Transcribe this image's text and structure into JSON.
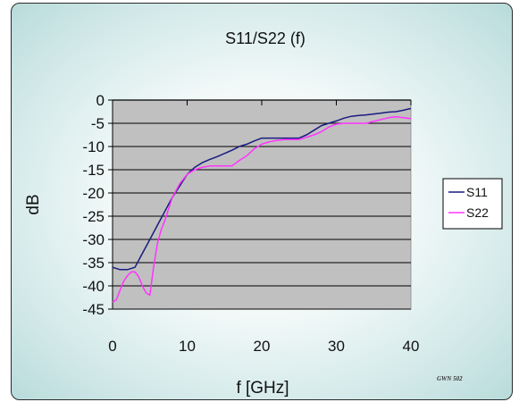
{
  "chart_data": {
    "type": "line",
    "title": "S11/S22 (f)",
    "xlabel": "f [GHz]",
    "ylabel": "dB",
    "xlim": [
      0,
      40
    ],
    "ylim": [
      -45,
      0
    ],
    "xticks": [
      0,
      10,
      20,
      30,
      40
    ],
    "yticks": [
      0,
      -5,
      -10,
      -15,
      -20,
      -25,
      -30,
      -35,
      -40,
      -45
    ],
    "grid": "horizontal",
    "legend_position": "right",
    "series": [
      {
        "name": "S11",
        "color": "#1a1a80",
        "x": [
          0,
          1,
          2,
          3,
          4,
          5,
          6,
          7,
          8,
          9,
          10,
          11,
          12,
          13,
          14,
          15,
          16,
          17,
          18,
          19,
          20,
          21,
          22,
          23,
          24,
          25,
          26,
          27,
          28,
          29,
          30,
          31,
          32,
          33,
          34,
          35,
          36,
          37,
          38,
          39,
          40
        ],
        "y": [
          -36,
          -36.5,
          -36.5,
          -36,
          -33,
          -30,
          -27,
          -24,
          -21,
          -18.5,
          -16,
          -14.5,
          -13.5,
          -12.8,
          -12.2,
          -11.5,
          -10.8,
          -10,
          -9.5,
          -8.8,
          -8.2,
          -8.2,
          -8.2,
          -8.2,
          -8.2,
          -8.2,
          -7.5,
          -6.5,
          -5.5,
          -5,
          -4.5,
          -3.9,
          -3.5,
          -3.3,
          -3.2,
          -3,
          -2.8,
          -2.6,
          -2.5,
          -2.2,
          -1.8
        ]
      },
      {
        "name": "S22",
        "color": "#ff33ff",
        "x": [
          0,
          0.5,
          1,
          1.5,
          2,
          2.5,
          3,
          3.5,
          4,
          4.5,
          5,
          5.5,
          6,
          6.5,
          7,
          8,
          9,
          10,
          11,
          12,
          13,
          14,
          15,
          16,
          17,
          18,
          19,
          20,
          21,
          22,
          23,
          24,
          25,
          26,
          27,
          28,
          29,
          30,
          31,
          32,
          33,
          34,
          35,
          36,
          37,
          38,
          39,
          40
        ],
        "y": [
          -43.5,
          -43,
          -41,
          -39,
          -37.8,
          -37,
          -37,
          -38,
          -40,
          -41.5,
          -42,
          -36,
          -31,
          -28,
          -26,
          -21,
          -18,
          -16,
          -15,
          -14.5,
          -14.2,
          -14.2,
          -14.2,
          -14.2,
          -13,
          -12,
          -10.5,
          -9.5,
          -9,
          -8.7,
          -8.5,
          -8.5,
          -8.5,
          -8,
          -7.5,
          -6.8,
          -5.8,
          -5.2,
          -5,
          -5,
          -5,
          -5,
          -4.6,
          -4.2,
          -3.8,
          -3.6,
          -3.8,
          -4
        ]
      }
    ]
  },
  "watermark": "GWN 502"
}
